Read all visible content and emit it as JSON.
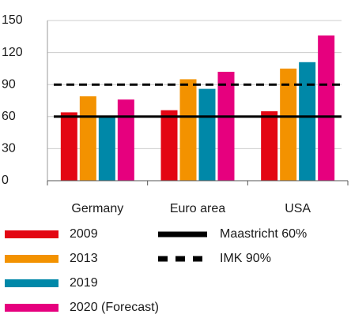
{
  "chart_data": {
    "type": "bar",
    "categories": [
      "Germany",
      "Euro area",
      "USA"
    ],
    "series": [
      {
        "name": "2009",
        "color": "#e30613",
        "values": [
          64,
          66,
          65
        ]
      },
      {
        "name": "2013",
        "color": "#f39200",
        "values": [
          79,
          95,
          105
        ]
      },
      {
        "name": "2019",
        "color": "#0088a8",
        "values": [
          60,
          86,
          111
        ]
      },
      {
        "name": "2020 (Forecast)",
        "color": "#e6007e",
        "values": [
          76,
          102,
          136
        ]
      }
    ],
    "reference_lines": [
      {
        "name": "Maastricht 60%",
        "value": 60,
        "style": "solid",
        "color": "#000000"
      },
      {
        "name": "IMK 90%",
        "value": 90,
        "style": "dashed",
        "color": "#000000"
      }
    ],
    "ylim": [
      0,
      150
    ],
    "yticks": [
      0,
      30,
      60,
      90,
      120,
      150
    ],
    "grid": true
  }
}
